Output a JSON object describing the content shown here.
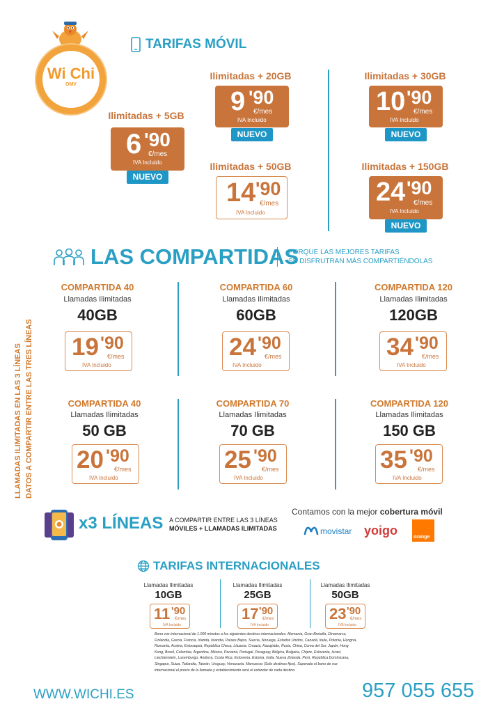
{
  "brand": {
    "logo_text": "Wi Chi",
    "logo_sub": "OMV"
  },
  "movil": {
    "title": "TARIFAS MÓVIL",
    "plans": [
      {
        "name": "Ilimitadas + 5GB",
        "main": "6",
        "cents": "'90",
        "unit": "€/mes",
        "iva": "IVA Incluido",
        "badge": "NUEVO"
      },
      {
        "name": "Ilimitadas + 20GB",
        "main": "9",
        "cents": "'90",
        "unit": "€/mes",
        "iva": "IVA Incluido",
        "badge": "NUEVO"
      },
      {
        "name": "Ilimitadas + 30GB",
        "main": "10",
        "cents": "'90",
        "unit": "€/mes",
        "iva": "IVA Incluido",
        "badge": "NUEVO"
      },
      {
        "name": "Ilimitadas + 50GB",
        "main": "14",
        "cents": "'90",
        "unit": "€/mes",
        "iva": "IVA Incluido"
      },
      {
        "name": "Ilimitadas + 150GB",
        "main": "24",
        "cents": "'90",
        "unit": "€/mes",
        "iva": "IVA Incluido",
        "badge": "NUEVO"
      }
    ]
  },
  "compartidas": {
    "title": "LAS COMPARTIDAS",
    "tagline1": "PORQUE LAS MEJORES TARIFAS",
    "tagline2": "SE DISFRUTRAN MÁS COMPARTIÉNDOLAS",
    "side1": "LLAMADAS ILIMITADAS EN LAS 3 LÍNEAS",
    "side2": "DATOS A COMPARTIR ENTRE LAS TRES LÍNEAS",
    "row1": [
      {
        "name": "COMPARTIDA 40",
        "sub": "Llamadas Ilimitadas",
        "gb": "40GB",
        "main": "19",
        "cents": "'90",
        "unit": "€/mes",
        "iva": "IVA Incluido"
      },
      {
        "name": "COMPARTIDA 60",
        "sub": "Llamadas Ilimitadas",
        "gb": "60GB",
        "main": "24",
        "cents": "'90",
        "unit": "€/mes",
        "iva": "IVA Incluido"
      },
      {
        "name": "COMPARTIDA 120",
        "sub": "Llamadas Ilimitadas",
        "gb": "120GB",
        "main": "34",
        "cents": "'90",
        "unit": "€/mes",
        "iva": "IVA Incluido"
      }
    ],
    "row2": [
      {
        "name": "COMPARTIDA 40",
        "sub": "Llamadas Ilimitadas",
        "gb": "50 GB",
        "main": "20",
        "cents": "'90",
        "unit": "€/mes",
        "iva": "IVA Incluido"
      },
      {
        "name": "COMPARTIDA 70",
        "sub": "Llamadas Ilimitadas",
        "gb": "70 GB",
        "main": "25",
        "cents": "'90",
        "unit": "€/mes",
        "iva": "IVA Incluido"
      },
      {
        "name": "COMPARTIDA 120",
        "sub": "Llamadas Ilimitadas",
        "gb": "150 GB",
        "main": "35",
        "cents": "'90",
        "unit": "€/mes",
        "iva": "IVA Incluido"
      }
    ]
  },
  "x3": {
    "title": "x3 LÍNEAS",
    "desc1": "A COMPARTIR ENTRE LAS 3 LÍNEAS",
    "desc2": "MÓVILES + LLAMADAS ILIMITADAS"
  },
  "cobertura": {
    "text": "Contamos con la mejor",
    "bold": "cobertura móvil",
    "operators": [
      "movistar",
      "yoigo",
      "orange"
    ]
  },
  "internacional": {
    "title": "TARIFAS INTERNACIONALES",
    "plans": [
      {
        "sub": "Llamadas Ilimitadas",
        "gb": "10GB",
        "main": "11",
        "cents": "'90",
        "unit": "€/mes",
        "iva": "IVA Incluido"
      },
      {
        "sub": "Llamadas Ilimitadas",
        "gb": "25GB",
        "main": "17",
        "cents": "'90",
        "unit": "€/mes",
        "iva": "IVA Incluido"
      },
      {
        "sub": "Llamadas Ilimitadas",
        "gb": "50GB",
        "main": "23",
        "cents": "'90",
        "unit": "€/mes",
        "iva": "IVA Incluido"
      }
    ],
    "legal": "Bono voz internacional de 1.000 minutos a los siguientes destinos internacionales: Alemania, Gran Bretaña, Dinamarca, Finlandia, Grecia, Francia, Irlanda, Islandia, Países Bajos, Suecia, Noruega, Estados Unidos, Canadá, Italia, Polonia, Hungría, Rumanía, Austria, Eslovaquia, República Checa, Lituania, Croacia, Kazajistán, Rusia, China, Corea del Sur, Japón, Hong Kong, Brasil, Colombia, Argentina, México, Panamá, Portugal, Paraguay, Bélgica, Bulgaria, Chipre, Eslovenia, Israel, Liechtenstein, Luxemburgo, Andorra, Costa Rica, Eslovenia, Estonia, India, Nueva Zelanda, Perú, República Dominicana, Singapur, Suiza, Tailandia, Taiwán, Uruguay, Venezuela, Marruecos (Solo destinos fijos). Superado el bono de voz internacional el precio de la llamada y establecimiento será el estándar de cada destino."
  },
  "footer": {
    "web": "WWW.WICHI.ES",
    "phone": "957 055 655"
  }
}
